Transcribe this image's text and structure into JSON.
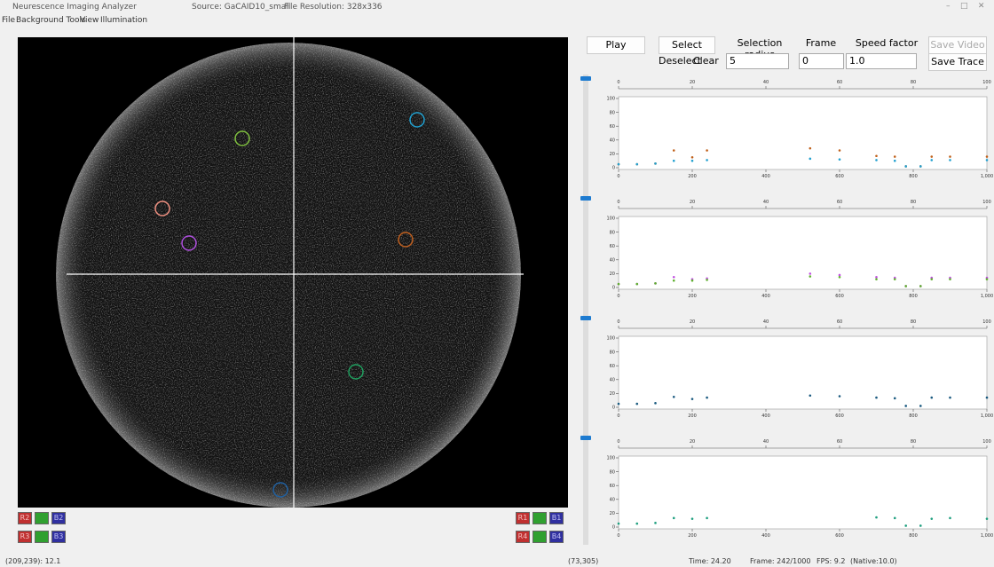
{
  "window": {
    "title": "Neurescence Imaging Analyzer",
    "source": "Source: GaCAID10_small",
    "resolution": "File Resolution: 328x336"
  },
  "menu": [
    "File",
    "Background Tools",
    "View",
    "Illumination"
  ],
  "controls": {
    "play": "Play",
    "select": "Select",
    "selection_radius_label": "Selection radius",
    "frame_label": "Frame",
    "speed_factor_label": "Speed factor",
    "save_video": "Save Video",
    "deselect": "Deselect",
    "clear": "Clear",
    "selection_radius": "5",
    "frame": "0",
    "speed_factor": "1.0",
    "save_trace": "Save Trace"
  },
  "channels": {
    "left": [
      [
        "R2",
        "B2"
      ],
      [
        "R3",
        "B3"
      ]
    ],
    "right": [
      [
        "R1",
        "B1"
      ],
      [
        "R4",
        "B4"
      ]
    ]
  },
  "status": {
    "cursor": "(209,239): 12.1",
    "roi": "(73,305)",
    "time": "Time: 24.20",
    "frame": "Frame: 242/1000",
    "fps": "FPS: 9.2",
    "native": "(Native:10.0)"
  },
  "chart_data": [
    {
      "type": "scatter",
      "x": [
        0,
        50,
        100,
        150,
        200,
        240,
        300,
        400,
        520,
        600,
        700,
        750,
        780,
        820,
        850,
        900,
        1000
      ],
      "series": [
        {
          "color": "#c0601a",
          "values": [
            5,
            5,
            6,
            25,
            15,
            25,
            null,
            null,
            28,
            25,
            17,
            16,
            2,
            2,
            16,
            16,
            16
          ]
        },
        {
          "color": "#22a0d0",
          "values": [
            5,
            5,
            6,
            10,
            10,
            11,
            null,
            null,
            13,
            12,
            11,
            10,
            2,
            2,
            11,
            11,
            11
          ]
        }
      ],
      "xlim": [
        0,
        1000
      ],
      "xticks": [
        0,
        200,
        400,
        600,
        800,
        {
          "value": 1000,
          "label": "1,000"
        }
      ],
      "ylim": [
        0,
        100
      ],
      "yticks": [
        0,
        20,
        40,
        60,
        80,
        100
      ],
      "x2lim": [
        0,
        100
      ],
      "x2ticks": [
        0,
        20,
        40,
        60,
        80,
        100
      ]
    },
    {
      "type": "scatter",
      "x": [
        0,
        50,
        100,
        150,
        200,
        240,
        300,
        400,
        520,
        600,
        700,
        750,
        780,
        820,
        850,
        900,
        1000
      ],
      "series": [
        {
          "color": "#c050e0",
          "values": [
            5,
            5,
            6,
            15,
            12,
            13,
            null,
            null,
            20,
            18,
            15,
            14,
            2,
            2,
            14,
            14,
            14
          ]
        },
        {
          "color": "#60b030",
          "values": [
            5,
            5,
            6,
            10,
            10,
            11,
            null,
            null,
            16,
            15,
            12,
            12,
            2,
            2,
            12,
            12,
            12
          ]
        }
      ],
      "xlim": [
        0,
        1000
      ],
      "xticks": [
        0,
        200,
        400,
        600,
        800,
        {
          "value": 1000,
          "label": "1,000"
        }
      ],
      "ylim": [
        0,
        100
      ],
      "yticks": [
        0,
        20,
        40,
        60,
        80,
        100
      ],
      "x2lim": [
        0,
        100
      ],
      "x2ticks": [
        0,
        20,
        40,
        60,
        80,
        100
      ]
    },
    {
      "type": "scatter",
      "x": [
        0,
        50,
        100,
        150,
        200,
        240,
        300,
        400,
        520,
        600,
        700,
        750,
        780,
        820,
        850,
        900,
        1000
      ],
      "series": [
        {
          "color": "#1a5a80",
          "values": [
            5,
            5,
            6,
            15,
            12,
            14,
            null,
            null,
            17,
            16,
            14,
            13,
            2,
            2,
            14,
            14,
            14
          ]
        }
      ],
      "xlim": [
        0,
        1000
      ],
      "xticks": [
        0,
        200,
        400,
        600,
        800,
        {
          "value": 1000,
          "label": "1,000"
        }
      ],
      "ylim": [
        0,
        100
      ],
      "yticks": [
        0,
        20,
        40,
        60,
        80,
        100
      ],
      "x2lim": [
        0,
        100
      ],
      "x2ticks": [
        0,
        20,
        40,
        60,
        80,
        100
      ]
    },
    {
      "type": "scatter",
      "x": [
        0,
        50,
        100,
        150,
        200,
        240,
        300,
        400,
        520,
        600,
        700,
        750,
        780,
        820,
        850,
        900,
        1000
      ],
      "series": [
        {
          "color": "#20a080",
          "values": [
            5,
            5,
            6,
            13,
            12,
            13,
            null,
            null,
            null,
            null,
            14,
            13,
            2,
            2,
            12,
            13,
            12
          ]
        }
      ],
      "xlim": [
        0,
        1000
      ],
      "xticks": [
        0,
        200,
        400,
        600,
        800,
        {
          "value": 1000,
          "label": "1,000"
        }
      ],
      "ylim": [
        0,
        100
      ],
      "yticks": [
        0,
        20,
        40,
        60,
        80,
        100
      ],
      "x2lim": [
        0,
        100
      ],
      "x2ticks": [
        0,
        20,
        40,
        60,
        80,
        100
      ]
    }
  ]
}
